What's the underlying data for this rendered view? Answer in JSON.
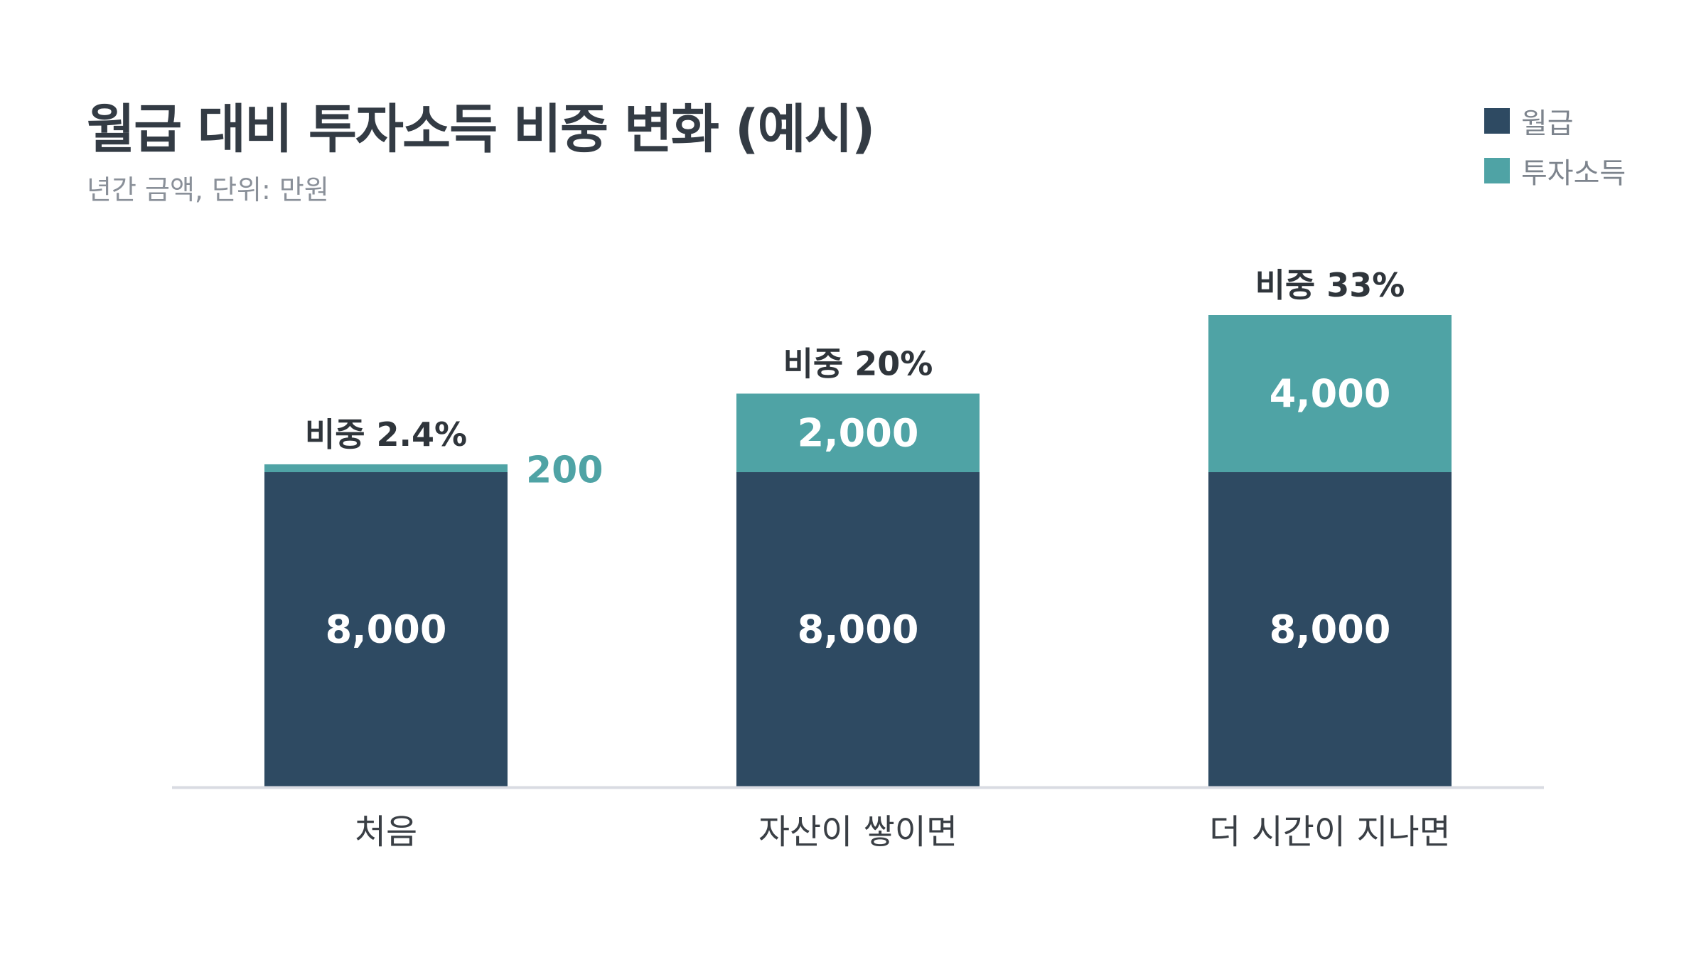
{
  "chart_data": {
    "type": "bar",
    "stacked": true,
    "title": "월급 대비 투자소득 비중 변화 (예시)",
    "subtitle": "년간 금액, 단위: 만원",
    "categories": [
      "처음",
      "자산이 쌓이면",
      "더 시간이 지나면"
    ],
    "series": [
      {
        "name": "월급",
        "values": [
          8000,
          8000,
          8000
        ],
        "color": "#2e4a62"
      },
      {
        "name": "투자소득",
        "values": [
          200,
          2000,
          4000
        ],
        "color": "#4fa3a5"
      }
    ],
    "value_labels": {
      "salary": [
        "8,000",
        "8,000",
        "8,000"
      ],
      "investment": [
        "200",
        "2,000",
        "4,000"
      ]
    },
    "ratio_labels": [
      "비중 2.4%",
      "비중 20%",
      "비중 33%"
    ],
    "ylim": [
      0,
      12000
    ],
    "legend": "top-right",
    "grid": false
  }
}
